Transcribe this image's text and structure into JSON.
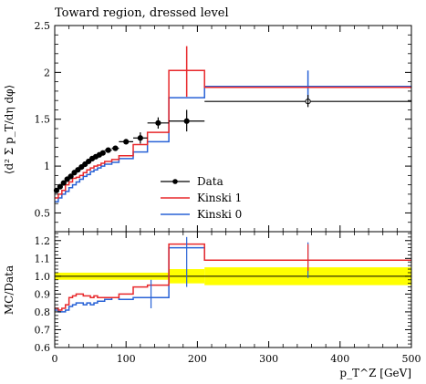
{
  "chart_data": [
    {
      "type": "line",
      "panel": "main",
      "title": "Toward region, dressed level",
      "ylabel": "⟨d² Σ p_T/dη dφ⟩",
      "xlim": [
        0,
        500
      ],
      "ylim": [
        0.3,
        2.5
      ],
      "yticks": [
        0.5,
        1,
        1.5,
        2,
        2.5
      ],
      "xticks": [
        0,
        100,
        200,
        300,
        400,
        500
      ],
      "legend_position": "center",
      "bin_edges": [
        0,
        5,
        10,
        15,
        20,
        25,
        30,
        35,
        40,
        45,
        50,
        55,
        60,
        65,
        70,
        80,
        90,
        110,
        130,
        160,
        210,
        500
      ],
      "series": [
        {
          "name": "Data",
          "style": "points",
          "color": "#000000",
          "x": [
            2.5,
            7.5,
            12.5,
            17.5,
            22.5,
            27.5,
            32.5,
            37.5,
            42.5,
            47.5,
            52.5,
            57.5,
            62.5,
            67.5,
            75,
            85,
            100,
            120,
            145,
            185,
            355
          ],
          "y": [
            0.74,
            0.78,
            0.82,
            0.86,
            0.89,
            0.93,
            0.96,
            0.99,
            1.02,
            1.05,
            1.08,
            1.1,
            1.12,
            1.14,
            1.17,
            1.19,
            1.26,
            1.3,
            1.46,
            1.48,
            1.69
          ]
        },
        {
          "name": "Kinski 1",
          "style": "step",
          "color": "#e8282b",
          "values": [
            0.66,
            0.7,
            0.74,
            0.8,
            0.83,
            0.87,
            0.88,
            0.9,
            0.93,
            0.96,
            0.98,
            1.0,
            1.01,
            1.03,
            1.05,
            1.07,
            1.11,
            1.23,
            1.36,
            2.02,
            1.84
          ],
          "error_bar": [
            {
              "x": 185,
              "low": 1.74,
              "high": 2.28
            }
          ]
        },
        {
          "name": "Kinski 0",
          "style": "step",
          "color": "#2862d6",
          "values": [
            0.62,
            0.66,
            0.7,
            0.73,
            0.77,
            0.8,
            0.83,
            0.86,
            0.89,
            0.91,
            0.94,
            0.96,
            0.98,
            1.0,
            1.02,
            1.04,
            1.08,
            1.15,
            1.26,
            1.73,
            1.85
          ],
          "error_bar": [
            {
              "x": 355,
              "low": 1.68,
              "high": 2.02
            }
          ]
        }
      ],
      "data_errors": [
        {
          "x": 120,
          "low": 1.24,
          "high": 1.36
        },
        {
          "x": 145,
          "low": 1.4,
          "high": 1.52
        },
        {
          "x": 185,
          "low": 1.37,
          "high": 1.6
        },
        {
          "x": 355,
          "low": 1.63,
          "high": 1.76
        }
      ]
    },
    {
      "type": "line",
      "panel": "ratio",
      "ylabel": "MC/Data",
      "xlabel": "p_T^Z [GeV]",
      "xlim": [
        0,
        500
      ],
      "ylim": [
        0.6,
        1.25
      ],
      "yticks": [
        0.6,
        0.7,
        0.8,
        0.9,
        1.0,
        1.1,
        1.2
      ],
      "xticks": [
        0,
        100,
        200,
        300,
        400,
        500
      ],
      "band_color": "#ffff00",
      "data_band": [
        {
          "x0": 0,
          "x1": 160,
          "low": 0.98,
          "high": 1.02
        },
        {
          "x0": 160,
          "x1": 210,
          "low": 0.96,
          "high": 1.04
        },
        {
          "x0": 210,
          "x1": 500,
          "low": 0.95,
          "high": 1.05
        }
      ],
      "series": [
        {
          "name": "Kinski 1",
          "color": "#e8282b",
          "values": [
            0.82,
            0.81,
            0.82,
            0.84,
            0.88,
            0.89,
            0.9,
            0.9,
            0.89,
            0.89,
            0.88,
            0.89,
            0.88,
            0.88,
            0.88,
            0.88,
            0.9,
            0.94,
            0.95,
            1.18,
            1.09
          ]
        },
        {
          "name": "Kinski 0",
          "color": "#2862d6",
          "values": [
            0.81,
            0.8,
            0.8,
            0.81,
            0.83,
            0.84,
            0.85,
            0.85,
            0.84,
            0.85,
            0.84,
            0.85,
            0.86,
            0.86,
            0.87,
            0.88,
            0.87,
            0.88,
            0.88,
            1.16,
            1.09
          ]
        }
      ],
      "error_bars": [
        {
          "x": 135,
          "low": 0.82,
          "high": 0.98,
          "color": "#2862d6"
        },
        {
          "x": 185,
          "low": 0.94,
          "high": 1.22,
          "color": "#2862d6"
        },
        {
          "x": 355,
          "low": 0.99,
          "high": 1.19,
          "color": "#2862d6"
        },
        {
          "x": 355,
          "low": 1.03,
          "high": 1.18,
          "color": "#e8282b"
        }
      ]
    }
  ]
}
